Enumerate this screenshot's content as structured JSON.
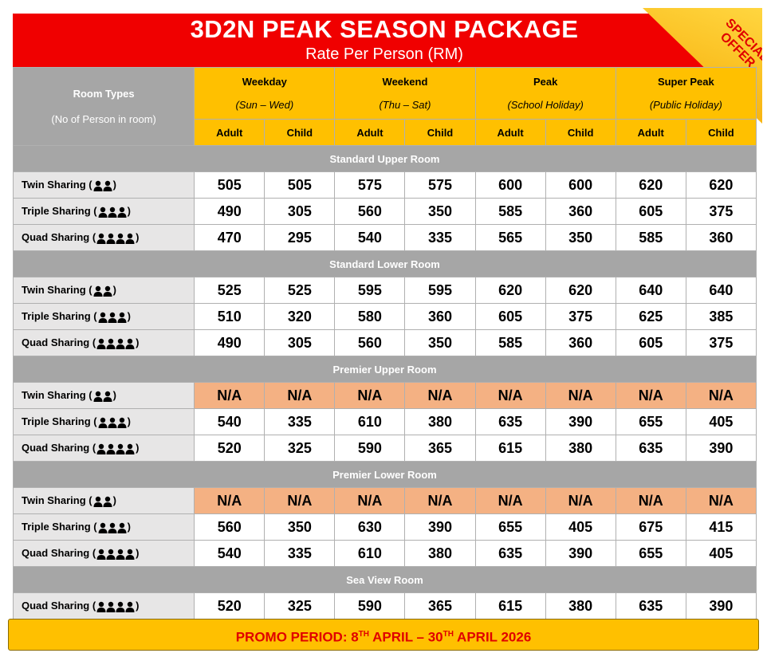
{
  "header": {
    "title": "3D2N PEAK SEASON PACKAGE",
    "subtitle": "Rate Per Person (RM)",
    "badge": [
      "SPECIAL",
      "OFFER"
    ]
  },
  "table": {
    "room_types": "Room Types",
    "room_types_note": "(No of Person in room)",
    "periods": [
      {
        "name": "Weekday",
        "days": "(Sun – Wed)"
      },
      {
        "name": "Weekend",
        "days": "(Thu – Sat)"
      },
      {
        "name": "Peak",
        "days": "(School Holiday)"
      },
      {
        "name": "Super Peak",
        "days": "(Public Holiday)"
      }
    ],
    "adult": "Adult",
    "child": "Child",
    "close": ")",
    "sections": [
      {
        "title": "Standard Upper Room",
        "rows": [
          {
            "label": "Twin Sharing (",
            "values": [
              505,
              505,
              575,
              575,
              600,
              600,
              620,
              620
            ]
          },
          {
            "label": "Triple Sharing (",
            "values": [
              490,
              305,
              560,
              350,
              585,
              360,
              605,
              375
            ]
          },
          {
            "label": "Quad Sharing (",
            "values": [
              470,
              295,
              540,
              335,
              565,
              350,
              585,
              360
            ]
          }
        ]
      },
      {
        "title": "Standard Lower Room",
        "rows": [
          {
            "label": "Twin Sharing (",
            "values": [
              525,
              525,
              595,
              595,
              620,
              620,
              640,
              640
            ]
          },
          {
            "label": "Triple Sharing (",
            "values": [
              510,
              320,
              580,
              360,
              605,
              375,
              625,
              385
            ]
          },
          {
            "label": "Quad Sharing (",
            "values": [
              490,
              305,
              560,
              350,
              585,
              360,
              605,
              375
            ]
          }
        ]
      },
      {
        "title": "Premier Upper Room",
        "rows": [
          {
            "label": "Twin Sharing (",
            "values": [
              "N/A",
              "N/A",
              "N/A",
              "N/A",
              "N/A",
              "N/A",
              "N/A",
              "N/A"
            ]
          },
          {
            "label": "Triple Sharing (",
            "values": [
              540,
              335,
              610,
              380,
              635,
              390,
              655,
              405
            ]
          },
          {
            "label": "Quad Sharing (",
            "values": [
              520,
              325,
              590,
              365,
              615,
              380,
              635,
              390
            ]
          }
        ]
      },
      {
        "title": "Premier Lower Room",
        "rows": [
          {
            "label": "Twin Sharing (",
            "values": [
              "N/A",
              "N/A",
              "N/A",
              "N/A",
              "N/A",
              "N/A",
              "N/A",
              "N/A"
            ]
          },
          {
            "label": "Triple Sharing (",
            "values": [
              560,
              350,
              630,
              390,
              655,
              405,
              675,
              415
            ]
          },
          {
            "label": "Quad Sharing (",
            "values": [
              540,
              335,
              610,
              380,
              635,
              390,
              655,
              405
            ]
          }
        ]
      },
      {
        "title": "Sea View Room",
        "rows": [
          {
            "label": "Quad Sharing (",
            "values": [
              520,
              325,
              590,
              365,
              615,
              380,
              635,
              390
            ]
          }
        ]
      }
    ]
  },
  "footer": {
    "parts": [
      "PROMO PERIOD: 8",
      "TH",
      " APRIL – 30",
      "TH",
      " APRIL 2026"
    ]
  }
}
